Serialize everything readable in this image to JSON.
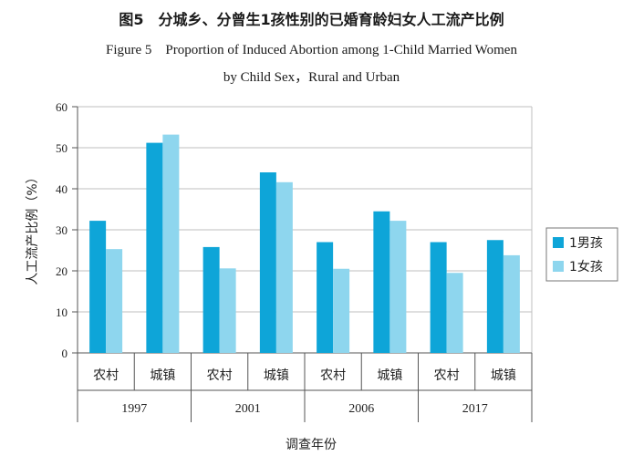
{
  "title_cn": "图5　分城乡、分曾生1孩性别的已婚育龄妇女人工流产比例",
  "title_en_line1": "Figure 5　Proportion of Induced Abortion among 1-Child Married Women",
  "title_en_line2": "by Child Sex，Rural and Urban",
  "chart_data": {
    "type": "bar",
    "ylabel": "人工流产比例（%）",
    "xlabel": "调查年份",
    "ylim": [
      0,
      60
    ],
    "yticks": [
      "0",
      "10",
      "20",
      "30",
      "40",
      "50",
      "60"
    ],
    "years": [
      "1997",
      "2001",
      "2006",
      "2017"
    ],
    "categories": [
      "农村",
      "城镇",
      "农村",
      "城镇",
      "农村",
      "城镇",
      "农村",
      "城镇"
    ],
    "series": [
      {
        "name": "1男孩",
        "color": "#0ea5d8",
        "values": [
          32.2,
          51.2,
          25.8,
          44.0,
          27.0,
          34.5,
          27.0,
          27.5
        ]
      },
      {
        "name": "1女孩",
        "color": "#8ed6ee",
        "values": [
          25.3,
          53.2,
          20.6,
          41.6,
          20.5,
          32.2,
          19.5,
          23.8
        ]
      }
    ],
    "legend_position": "right",
    "grid": true
  }
}
